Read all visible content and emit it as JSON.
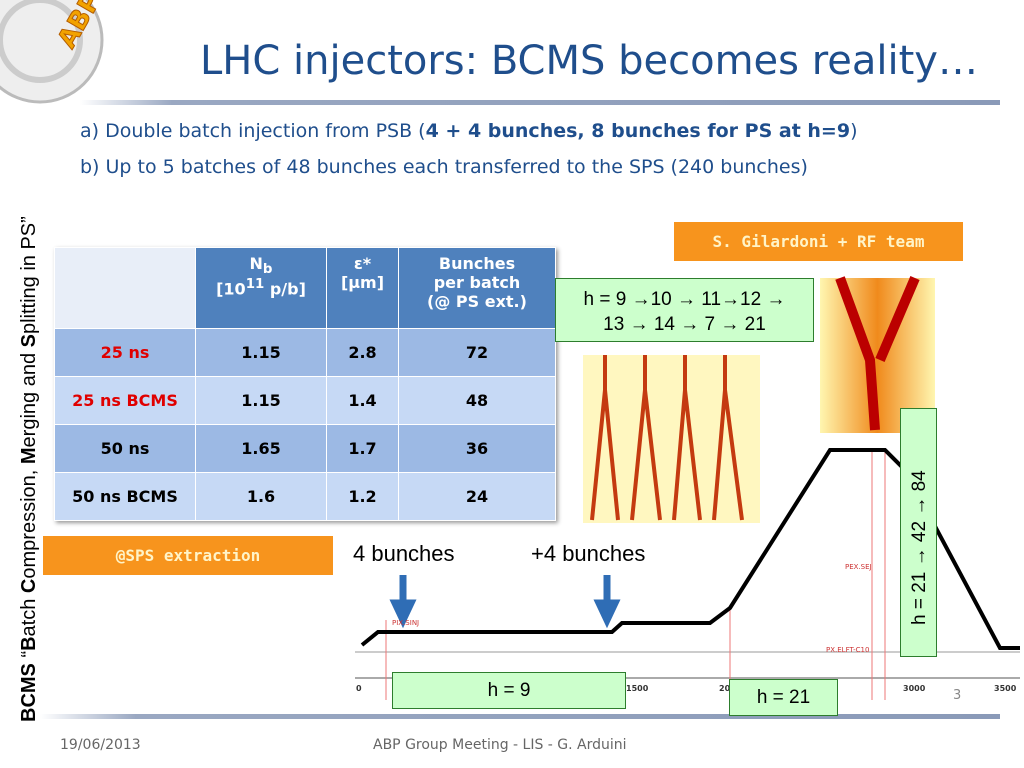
{
  "logo": "ABP-LIS",
  "side_title": {
    "parts": [
      "BCMS",
      " “",
      "B",
      "atch ",
      "C",
      "ompression, ",
      "M",
      "erging and ",
      "S",
      "plitting in PS”"
    ]
  },
  "header": {
    "title": "LHC injectors: BCMS becomes reality…"
  },
  "bullets": [
    {
      "prefix": "a) Double batch injection from PSB (",
      "bold": "4 + 4 bunches, 8 bunches for PS at h=9",
      "suffix": ")"
    },
    {
      "text": "b) Up to 5 batches of 48 bunches each transferred to the SPS (240 bunches)"
    }
  ],
  "table": {
    "header": [
      {
        "main": "N",
        "sub": "b",
        "unit_a": "[10",
        "sup": "11",
        "unit_b": " p/b]"
      },
      {
        "main": "ε*",
        "unit": "[μm]"
      },
      {
        "lines": [
          "Bunches",
          "per batch",
          "(@ PS ext.)"
        ]
      }
    ],
    "rows": [
      [
        "25 ns",
        "1.15",
        "2.8",
        "72"
      ],
      [
        "25 ns BCMS",
        "1.15",
        "1.4",
        "48"
      ],
      [
        "50 ns",
        "1.65",
        "1.7",
        "36"
      ],
      [
        "50 ns BCMS",
        "1.6",
        "1.2",
        "24"
      ]
    ]
  },
  "credit": "S. Gilardoni +  RF team",
  "harmonics_box": {
    "line1": "h = 9 →10 → 11→12 →",
    "line2": "13 → 14 → 7 → 21"
  },
  "extraction": "@SPS extraction",
  "cycle": {
    "label_first": "4 bunches",
    "label_second": "+4 bunches",
    "markers": [
      "PIX.SINJ",
      "PEX.SEJ",
      "PX.ELFT-C10"
    ],
    "axis_labels": [
      "0",
      "1500",
      "20",
      "3000",
      "3500"
    ],
    "h_first": "h = 9",
    "h_second": "h = 21",
    "h_vertical": "h = 21 → 42 → 84"
  },
  "page_number": "3",
  "footer": {
    "date": "19/06/2013",
    "center": "ABP Group Meeting - LIS - G. Arduini"
  }
}
